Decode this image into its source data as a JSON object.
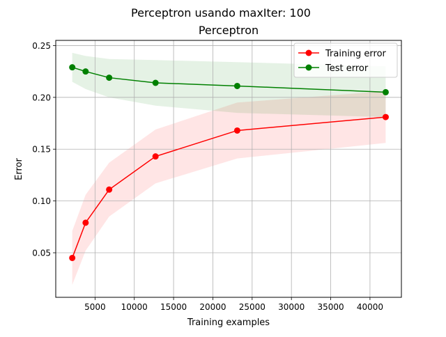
{
  "figure": {
    "suptitle": "Perceptron usando maxIter: 100"
  },
  "chart_data": {
    "type": "line",
    "title": "Perceptron",
    "xlabel": "Training examples",
    "ylabel": "Error",
    "xlim": [
      0,
      44000
    ],
    "ylim": [
      0.007,
      0.255
    ],
    "x_ticks": [
      5000,
      10000,
      15000,
      20000,
      25000,
      30000,
      35000,
      40000
    ],
    "x_tick_labels": [
      "5000",
      "10000",
      "15000",
      "20000",
      "25000",
      "30000",
      "35000",
      "40000"
    ],
    "y_ticks": [
      0.05,
      0.1,
      0.15,
      0.2,
      0.25
    ],
    "y_tick_labels": [
      "0.05",
      "0.10",
      "0.15",
      "0.20",
      "0.25"
    ],
    "grid": true,
    "legend_position": "top-right",
    "x": [
      2100,
      3800,
      6800,
      12700,
      23100,
      42000
    ],
    "series": [
      {
        "name": "Training error",
        "color": "#ff0000",
        "marker": "circle",
        "values": [
          0.045,
          0.079,
          0.111,
          0.143,
          0.168,
          0.181
        ],
        "band_lower": [
          0.019,
          0.052,
          0.085,
          0.117,
          0.141,
          0.156
        ],
        "band_upper": [
          0.071,
          0.106,
          0.137,
          0.169,
          0.195,
          0.206
        ]
      },
      {
        "name": "Test error",
        "color": "#008000",
        "marker": "circle",
        "values": [
          0.229,
          0.225,
          0.219,
          0.214,
          0.211,
          0.205
        ],
        "band_lower": [
          0.215,
          0.208,
          0.2,
          0.192,
          0.185,
          0.181
        ],
        "band_upper": [
          0.243,
          0.24,
          0.237,
          0.236,
          0.234,
          0.23
        ]
      }
    ]
  }
}
